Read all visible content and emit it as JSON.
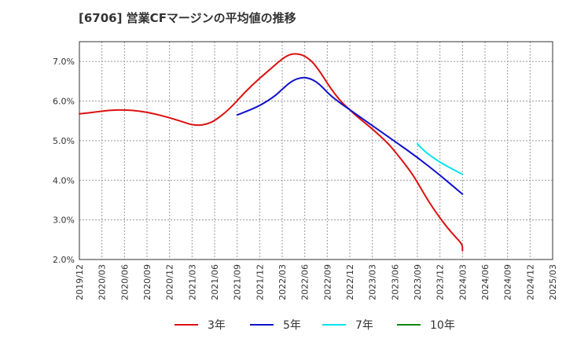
{
  "chart_data": {
    "type": "line",
    "title": "[6706]  営業CFマージンの平均値の推移",
    "y_ticks": [
      "2.0%",
      "3.0%",
      "4.0%",
      "5.0%",
      "6.0%",
      "7.0%"
    ],
    "ylim": [
      2.0,
      7.5
    ],
    "x_ticks": [
      "2019/12",
      "2020/03",
      "2020/06",
      "2020/09",
      "2020/12",
      "2021/03",
      "2021/06",
      "2021/09",
      "2021/12",
      "2022/03",
      "2022/06",
      "2022/09",
      "2022/12",
      "2023/03",
      "2023/06",
      "2023/09",
      "2023/12",
      "2024/03",
      "2024/06",
      "2024/09",
      "2024/12",
      "2025/03"
    ],
    "grid": true,
    "legend_position": "bottom",
    "series": [
      {
        "name": "3年",
        "color": "#dd1111",
        "points": [
          [
            "2019/12",
            5.68
          ],
          [
            "2020/02",
            5.72
          ],
          [
            "2020/04",
            5.77
          ],
          [
            "2020/06",
            5.78
          ],
          [
            "2020/08",
            5.75
          ],
          [
            "2020/10",
            5.68
          ],
          [
            "2020/12",
            5.58
          ],
          [
            "2021/02",
            5.46
          ],
          [
            "2021/03",
            5.4
          ],
          [
            "2021/04",
            5.39
          ],
          [
            "2021/05",
            5.42
          ],
          [
            "2021/06",
            5.5
          ],
          [
            "2021/08",
            5.8
          ],
          [
            "2021/10",
            6.22
          ],
          [
            "2021/12",
            6.58
          ],
          [
            "2022/02",
            6.9
          ],
          [
            "2022/03",
            7.07
          ],
          [
            "2022/04",
            7.18
          ],
          [
            "2022/05",
            7.2
          ],
          [
            "2022/06",
            7.14
          ],
          [
            "2022/07",
            7.0
          ],
          [
            "2022/08",
            6.75
          ],
          [
            "2022/09",
            6.45
          ],
          [
            "2022/10",
            6.18
          ],
          [
            "2022/11",
            5.95
          ],
          [
            "2022/12",
            5.78
          ],
          [
            "2023/01",
            5.6
          ],
          [
            "2023/03",
            5.3
          ],
          [
            "2023/05",
            4.95
          ],
          [
            "2023/06",
            4.73
          ],
          [
            "2023/08",
            4.25
          ],
          [
            "2023/09",
            3.95
          ],
          [
            "2023/10",
            3.62
          ],
          [
            "2023/11",
            3.32
          ],
          [
            "2023/12",
            3.05
          ],
          [
            "2024/01",
            2.8
          ],
          [
            "2024/02",
            2.58
          ],
          [
            "2024/03",
            2.38
          ],
          [
            "2024/03",
            2.22
          ]
        ]
      },
      {
        "name": "5年",
        "color": "#1111cc",
        "points": [
          [
            "2021/09",
            5.65
          ],
          [
            "2021/10",
            5.72
          ],
          [
            "2021/12",
            5.88
          ],
          [
            "2022/02",
            6.12
          ],
          [
            "2022/03",
            6.3
          ],
          [
            "2022/04",
            6.47
          ],
          [
            "2022/05",
            6.57
          ],
          [
            "2022/06",
            6.6
          ],
          [
            "2022/07",
            6.55
          ],
          [
            "2022/08",
            6.42
          ],
          [
            "2022/09",
            6.22
          ],
          [
            "2022/10",
            6.05
          ],
          [
            "2022/12",
            5.78
          ],
          [
            "2023/03",
            5.38
          ],
          [
            "2023/06",
            4.98
          ],
          [
            "2023/09",
            4.58
          ],
          [
            "2023/12",
            4.13
          ],
          [
            "2024/03",
            3.65
          ]
        ]
      },
      {
        "name": "7年",
        "color": "#00e5ee",
        "points": [
          [
            "2023/09",
            4.92
          ],
          [
            "2023/10",
            4.72
          ],
          [
            "2023/12",
            4.45
          ],
          [
            "2024/02",
            4.25
          ],
          [
            "2024/03",
            4.15
          ]
        ]
      },
      {
        "name": "10年",
        "color": "#118811",
        "points": []
      }
    ]
  }
}
